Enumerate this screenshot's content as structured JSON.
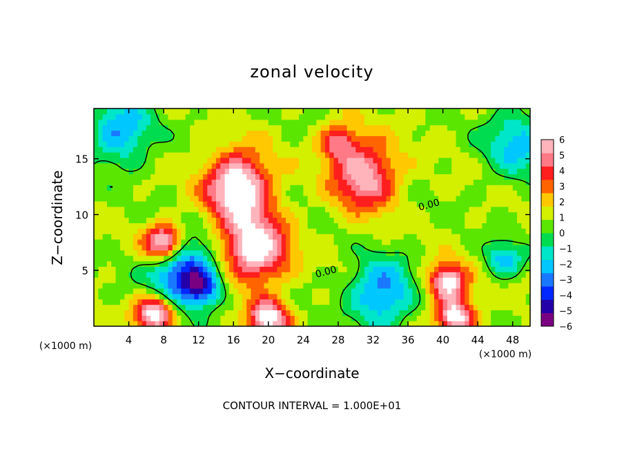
{
  "chart_data": {
    "type": "heatmap",
    "title": "zonal velocity",
    "xlabel": "X−coordinate",
    "ylabel": "Z−coordinate",
    "x_unit_left": "(×1000 m)",
    "x_unit_right": "(×1000 m)",
    "footnote": "CONTOUR INTERVAL = 1.000E+01",
    "xlim": [
      0,
      50
    ],
    "ylim": [
      0,
      19.5
    ],
    "x_ticks": [
      4,
      8,
      12,
      16,
      20,
      24,
      28,
      32,
      36,
      40,
      44,
      48
    ],
    "x_tick_labels": [
      "4",
      "8",
      "12",
      "16",
      "20",
      "24",
      "28",
      "32",
      "36",
      "40",
      "44",
      "48"
    ],
    "y_ticks": [
      5,
      10,
      15
    ],
    "y_tick_labels": [
      "5",
      "10",
      "15"
    ],
    "colorbar": {
      "vmin": -6,
      "vmax": 6,
      "tick_labels": [
        "6",
        "5",
        "4",
        "3",
        "2",
        "1",
        "0",
        "−1",
        "−2",
        "−3",
        "−4",
        "−5",
        "−6"
      ],
      "colors": [
        "#7a0082",
        "#2400a8",
        "#0028ff",
        "#1a78ff",
        "#00c8ff",
        "#00e6c8",
        "#00dc50",
        "#5ae600",
        "#d2f000",
        "#ffc800",
        "#ff6400",
        "#ff1e1e",
        "#ff7a86",
        "#ffb4bc"
      ]
    },
    "contour_labels": [
      {
        "text": "0.00",
        "x": 38.5,
        "y": 10.6
      },
      {
        "text": "0.00",
        "x": 26.7,
        "y": 4.6
      }
    ],
    "features": [
      {
        "kind": "positive-max",
        "x": 16.5,
        "y": 12.5,
        "value": 6.5
      },
      {
        "kind": "positive-max",
        "x": 18.5,
        "y": 7.0,
        "value": 6.2
      },
      {
        "kind": "positive-max",
        "x": 31.0,
        "y": 13.5,
        "value": 5.0
      },
      {
        "kind": "positive",
        "x": 28.0,
        "y": 16.5,
        "value": 3.5
      },
      {
        "kind": "positive",
        "x": 7.0,
        "y": 1.2,
        "value": 6.2
      },
      {
        "kind": "positive",
        "x": 20.0,
        "y": 0.8,
        "value": 6.0
      },
      {
        "kind": "positive",
        "x": 41.5,
        "y": 0.9,
        "value": 6.0
      },
      {
        "kind": "positive",
        "x": 40.5,
        "y": 4.0,
        "value": 6.0
      },
      {
        "kind": "positive",
        "x": 8.0,
        "y": 7.5,
        "value": 6.8
      },
      {
        "kind": "negative-min",
        "x": 3.0,
        "y": 17.5,
        "value": -3.5
      },
      {
        "kind": "negative-min",
        "x": 48.5,
        "y": 16.5,
        "value": -3.0
      },
      {
        "kind": "negative-min",
        "x": 10.0,
        "y": 5.0,
        "value": -5.0
      },
      {
        "kind": "negative-min",
        "x": 33.0,
        "y": 3.0,
        "value": -4.0
      },
      {
        "kind": "negative",
        "x": 12.5,
        "y": 3.5,
        "value": -4.0
      },
      {
        "kind": "negative",
        "x": 47.0,
        "y": 6.0,
        "value": -3.0
      }
    ]
  }
}
